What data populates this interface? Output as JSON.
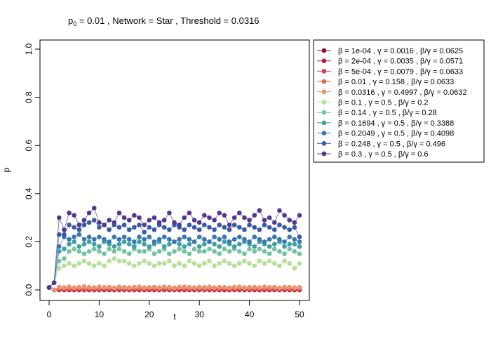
{
  "chart_data": {
    "type": "line",
    "title": {
      "p_symbol": "p",
      "p_subscript": "0",
      "text_after_subscript": " = 0.01 ,  Network = Star ,  Threshold = 0.0316"
    },
    "xlabel": "t",
    "ylabel": "p",
    "xlim": [
      0,
      50
    ],
    "ylim": [
      0,
      1
    ],
    "x_ticks": [
      0,
      10,
      20,
      30,
      40,
      50
    ],
    "y_ticks": [
      "0.0",
      "0.2",
      "0.4",
      "0.6",
      "0.8",
      "1.0"
    ],
    "y_tick_values": [
      0,
      0.2,
      0.4,
      0.6,
      0.8,
      1.0
    ],
    "grid": false,
    "legend_position": "right",
    "legend": [
      "β = 1e-04 ,  γ = 0.0016 ,  β/γ = 0.0625",
      "β = 2e-04 ,  γ = 0.0035 ,  β/γ = 0.0571",
      "β = 5e-04 ,  γ = 0.0079 ,  β/γ = 0.0633",
      "β = 0.01 ,  γ = 0.158 ,  β/γ = 0.0633",
      "β = 0.0316 ,  γ = 0.4997 ,  β/γ = 0.0632",
      "β = 0.1 ,  γ = 0.5 ,  β/γ = 0.2",
      "β = 0.14 ,  γ = 0.5 ,  β/γ = 0.28",
      "β = 0.1694 ,  γ = 0.5 ,  β/γ = 0.3388",
      "β = 0.2049 ,  γ = 0.5 ,  β/γ = 0.4098",
      "β = 0.248 ,  γ = 0.5 ,  β/γ = 0.496",
      "β = 0.3 ,  γ = 0.5 ,  β/γ = 0.6"
    ],
    "colors": [
      "#8e0a3d",
      "#b01d48",
      "#d33f4b",
      "#e8624c",
      "#e8936a",
      "#b4e09a",
      "#74c39e",
      "#3f9fa6",
      "#3779af",
      "#3a58a5",
      "#50388f"
    ],
    "x": [
      0,
      1,
      2,
      3,
      4,
      5,
      6,
      7,
      8,
      9,
      10,
      11,
      12,
      13,
      14,
      15,
      16,
      17,
      18,
      19,
      20,
      21,
      22,
      23,
      24,
      25,
      26,
      27,
      28,
      29,
      30,
      31,
      32,
      33,
      34,
      35,
      36,
      37,
      38,
      39,
      40,
      41,
      42,
      43,
      44,
      45,
      46,
      47,
      48,
      49,
      50
    ],
    "series": [
      {
        "values": [
          0.01,
          0,
          0,
          0,
          0,
          0,
          0,
          0,
          0,
          0,
          0,
          0,
          0,
          0,
          0,
          0,
          0,
          0,
          0,
          0,
          0,
          0,
          0,
          0,
          0,
          0,
          0,
          0,
          0,
          0,
          0,
          0,
          0,
          0,
          0,
          0,
          0,
          0,
          0,
          0,
          0,
          0,
          0,
          0,
          0,
          0,
          0,
          0,
          0,
          0,
          0
        ]
      },
      {
        "values": [
          0.01,
          0,
          0,
          0,
          0,
          0,
          0,
          0,
          0,
          0,
          0,
          0,
          0,
          0,
          0,
          0,
          0,
          0,
          0,
          0,
          0,
          0,
          0,
          0,
          0,
          0,
          0,
          0,
          0,
          0,
          0,
          0,
          0,
          0,
          0,
          0,
          0,
          0,
          0,
          0,
          0,
          0,
          0,
          0,
          0,
          0,
          0,
          0,
          0,
          0,
          0
        ]
      },
      {
        "values": [
          0.01,
          0,
          0.002,
          0.002,
          0.002,
          0.002,
          0.002,
          0.002,
          0.002,
          0.002,
          0.002,
          0.002,
          0.002,
          0.002,
          0.002,
          0.002,
          0.002,
          0.002,
          0.002,
          0.002,
          0.002,
          0.002,
          0.002,
          0.002,
          0.002,
          0.002,
          0.002,
          0.002,
          0.002,
          0.002,
          0.002,
          0.002,
          0.002,
          0.002,
          0.002,
          0.002,
          0.002,
          0.002,
          0.002,
          0.002,
          0.002,
          0.002,
          0.002,
          0.002,
          0.002,
          0.002,
          0.002,
          0.002,
          0.002,
          0.002,
          0.002
        ]
      },
      {
        "values": [
          0.01,
          0,
          0.006,
          0.008,
          0.007,
          0.009,
          0.008,
          0.007,
          0.009,
          0.008,
          0.007,
          0.009,
          0.008,
          0.007,
          0.009,
          0.008,
          0.007,
          0.009,
          0.008,
          0.007,
          0.009,
          0.008,
          0.007,
          0.009,
          0.008,
          0.007,
          0.009,
          0.008,
          0.007,
          0.009,
          0.008,
          0.007,
          0.009,
          0.008,
          0.007,
          0.009,
          0.008,
          0.007,
          0.009,
          0.008,
          0.007,
          0.009,
          0.008,
          0.007,
          0.009,
          0.008,
          0.007,
          0.009,
          0.008,
          0.007,
          0.008
        ]
      },
      {
        "values": [
          0.01,
          0,
          0.012,
          0.01,
          0.013,
          0.009,
          0.012,
          0.014,
          0.011,
          0.01,
          0.013,
          0.011,
          0.012,
          0.009,
          0.013,
          0.011,
          0.01,
          0.012,
          0.013,
          0.01,
          0.011,
          0.012,
          0.01,
          0.013,
          0.011,
          0.009,
          0.012,
          0.013,
          0.011,
          0.01,
          0.012,
          0.011,
          0.013,
          0.01,
          0.012,
          0.011,
          0.009,
          0.012,
          0.013,
          0.01,
          0.011,
          0.012,
          0.01,
          0.013,
          0.011,
          0.012,
          0.009,
          0.012,
          0.011,
          0.01,
          0.011
        ]
      },
      {
        "values": [
          0.01,
          0.03,
          0.09,
          0.1,
          0.11,
          0.1,
          0.11,
          0.12,
          0.11,
          0.1,
          0.11,
          0.1,
          0.12,
          0.13,
          0.12,
          0.12,
          0.11,
          0.1,
          0.11,
          0.12,
          0.11,
          0.1,
          0.11,
          0.11,
          0.12,
          0.1,
          0.11,
          0.1,
          0.12,
          0.11,
          0.1,
          0.11,
          0.12,
          0.1,
          0.11,
          0.12,
          0.11,
          0.1,
          0.11,
          0.12,
          0.11,
          0.1,
          0.12,
          0.11,
          0.12,
          0.11,
          0.1,
          0.12,
          0.11,
          0.09,
          0.11
        ]
      },
      {
        "values": [
          0.01,
          0.03,
          0.12,
          0.13,
          0.16,
          0.17,
          0.16,
          0.15,
          0.16,
          0.17,
          0.16,
          0.15,
          0.17,
          0.16,
          0.17,
          0.16,
          0.15,
          0.17,
          0.16,
          0.16,
          0.17,
          0.15,
          0.16,
          0.17,
          0.15,
          0.16,
          0.17,
          0.16,
          0.15,
          0.17,
          0.16,
          0.16,
          0.17,
          0.16,
          0.15,
          0.17,
          0.16,
          0.17,
          0.16,
          0.15,
          0.17,
          0.16,
          0.17,
          0.16,
          0.15,
          0.17,
          0.16,
          0.15,
          0.17,
          0.16,
          0.15
        ]
      },
      {
        "values": [
          0.01,
          0.03,
          0.16,
          0.17,
          0.19,
          0.2,
          0.18,
          0.19,
          0.2,
          0.19,
          0.18,
          0.2,
          0.19,
          0.18,
          0.19,
          0.2,
          0.19,
          0.18,
          0.2,
          0.19,
          0.18,
          0.19,
          0.2,
          0.18,
          0.19,
          0.2,
          0.19,
          0.18,
          0.19,
          0.2,
          0.18,
          0.19,
          0.2,
          0.19,
          0.18,
          0.2,
          0.19,
          0.18,
          0.19,
          0.2,
          0.19,
          0.18,
          0.2,
          0.19,
          0.18,
          0.19,
          0.2,
          0.18,
          0.19,
          0.19,
          0.18
        ]
      },
      {
        "values": [
          0.01,
          0.03,
          0.18,
          0.22,
          0.21,
          0.22,
          0.23,
          0.21,
          0.22,
          0.21,
          0.22,
          0.21,
          0.2,
          0.22,
          0.21,
          0.22,
          0.21,
          0.2,
          0.22,
          0.21,
          0.22,
          0.2,
          0.21,
          0.22,
          0.21,
          0.2,
          0.21,
          0.22,
          0.21,
          0.2,
          0.22,
          0.21,
          0.2,
          0.22,
          0.21,
          0.22,
          0.2,
          0.21,
          0.22,
          0.21,
          0.2,
          0.22,
          0.21,
          0.2,
          0.21,
          0.22,
          0.21,
          0.2,
          0.22,
          0.21,
          0.2
        ]
      },
      {
        "values": [
          0.01,
          0.03,
          0.23,
          0.23,
          0.27,
          0.26,
          0.25,
          0.27,
          0.28,
          0.29,
          0.26,
          0.27,
          0.25,
          0.27,
          0.26,
          0.27,
          0.25,
          0.26,
          0.27,
          0.24,
          0.26,
          0.25,
          0.27,
          0.26,
          0.25,
          0.27,
          0.26,
          0.25,
          0.27,
          0.26,
          0.25,
          0.27,
          0.26,
          0.25,
          0.27,
          0.26,
          0.25,
          0.27,
          0.26,
          0.25,
          0.27,
          0.26,
          0.25,
          0.27,
          0.26,
          0.25,
          0.27,
          0.26,
          0.25,
          0.26,
          0.22
        ]
      },
      {
        "values": [
          0.01,
          0.03,
          0.3,
          0.25,
          0.32,
          0.31,
          0.27,
          0.29,
          0.32,
          0.34,
          0.28,
          0.27,
          0.29,
          0.28,
          0.32,
          0.3,
          0.29,
          0.31,
          0.3,
          0.27,
          0.29,
          0.3,
          0.28,
          0.29,
          0.32,
          0.28,
          0.27,
          0.3,
          0.32,
          0.29,
          0.28,
          0.31,
          0.3,
          0.29,
          0.32,
          0.31,
          0.27,
          0.3,
          0.32,
          0.3,
          0.29,
          0.31,
          0.33,
          0.29,
          0.3,
          0.28,
          0.33,
          0.31,
          0.29,
          0.28,
          0.31
        ]
      }
    ]
  }
}
